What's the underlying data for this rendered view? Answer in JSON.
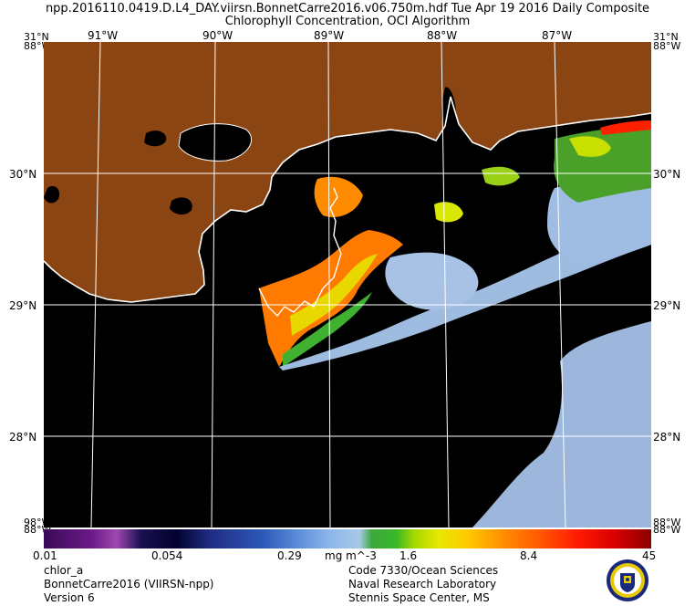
{
  "header": {
    "line1": "npp.2016110.0419.D.L4_DAY.viirsn.BonnetCarre2016.v06.750m.hdf     Tue Apr 19 2016 Daily Composite",
    "line2": "Chlorophyll Concentration, OCI Algorithm"
  },
  "axes": {
    "top_lon": [
      "91°W",
      "90°W",
      "89°W",
      "88°W",
      "87°W"
    ],
    "lat": [
      "30°N",
      "29°N",
      "28°N"
    ],
    "corner_top_left": "31°N",
    "corner_top_left2": "88°W",
    "corner_bottom": "98°W",
    "corner_bottom2": "88°W"
  },
  "colorbar": {
    "ticks": [
      "0.01",
      "0.054",
      "0.29",
      "1.6",
      "8.4",
      "45"
    ],
    "unit": "mg m^-3"
  },
  "footer_left": {
    "product": "chlor_a",
    "dataset": "BonnetCarre2016 (VIIRSN-npp)",
    "version": "Version 6"
  },
  "footer_right": {
    "org1": "Code 7330/Ocean Sciences",
    "org2": "Naval Research Laboratory",
    "org3": "Stennis Space Center, MS"
  },
  "colors": {
    "land": "#8b4513",
    "water_nodata": "#000000",
    "coast": "#ffffff",
    "grid": "#ffffff"
  },
  "icons": {
    "seal": "nrl-seal-icon"
  }
}
